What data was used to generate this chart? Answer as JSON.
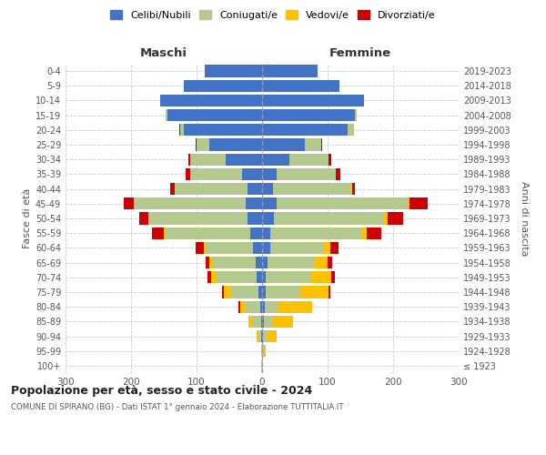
{
  "age_groups": [
    "100+",
    "95-99",
    "90-94",
    "85-89",
    "80-84",
    "75-79",
    "70-74",
    "65-69",
    "60-64",
    "55-59",
    "50-54",
    "45-49",
    "40-44",
    "35-39",
    "30-34",
    "25-29",
    "20-24",
    "15-19",
    "10-14",
    "5-9",
    "0-4"
  ],
  "birth_years": [
    "≤ 1923",
    "1924-1928",
    "1929-1933",
    "1934-1938",
    "1939-1943",
    "1944-1948",
    "1949-1953",
    "1954-1958",
    "1959-1963",
    "1964-1968",
    "1969-1973",
    "1974-1978",
    "1979-1983",
    "1984-1988",
    "1989-1993",
    "1994-1998",
    "1999-2003",
    "2004-2008",
    "2009-2013",
    "2014-2018",
    "2019-2023"
  ],
  "male_celibe": [
    0,
    0,
    1,
    2,
    3,
    5,
    8,
    10,
    14,
    18,
    22,
    25,
    22,
    30,
    55,
    80,
    120,
    145,
    155,
    120,
    88
  ],
  "male_coniugato": [
    1,
    2,
    5,
    13,
    23,
    42,
    62,
    65,
    72,
    130,
    150,
    170,
    112,
    80,
    55,
    20,
    5,
    2,
    1,
    0,
    0
  ],
  "male_vedovo": [
    0,
    0,
    3,
    6,
    8,
    12,
    8,
    5,
    3,
    2,
    1,
    1,
    0,
    0,
    0,
    0,
    0,
    0,
    0,
    0,
    0
  ],
  "male_divorziato": [
    0,
    0,
    0,
    0,
    2,
    2,
    6,
    6,
    12,
    18,
    14,
    15,
    6,
    6,
    3,
    2,
    1,
    0,
    0,
    0,
    0
  ],
  "female_nubile": [
    0,
    0,
    2,
    3,
    4,
    5,
    6,
    8,
    12,
    12,
    18,
    22,
    16,
    22,
    42,
    65,
    130,
    142,
    155,
    118,
    85
  ],
  "female_coniugata": [
    1,
    2,
    5,
    12,
    20,
    52,
    68,
    72,
    82,
    140,
    168,
    200,
    120,
    90,
    60,
    25,
    10,
    3,
    1,
    0,
    0
  ],
  "female_vedova": [
    1,
    3,
    15,
    32,
    52,
    45,
    32,
    20,
    10,
    8,
    5,
    3,
    1,
    0,
    0,
    0,
    0,
    0,
    0,
    0,
    0
  ],
  "female_divorziata": [
    0,
    0,
    0,
    0,
    1,
    2,
    5,
    7,
    12,
    22,
    24,
    28,
    5,
    8,
    3,
    2,
    0,
    0,
    0,
    0,
    0
  ],
  "colors": {
    "celibe": "#4472c4",
    "coniugato": "#b5c98e",
    "vedovo": "#ffc000",
    "divorziato": "#cc0000"
  },
  "title": "Popolazione per età, sesso e stato civile - 2024",
  "subtitle": "COMUNE DI SPIRANO (BG) - Dati ISTAT 1° gennaio 2024 - Elaborazione TUTTITALIA.IT",
  "ylabel_left": "Fasce di età",
  "ylabel_right": "Anni di nascita",
  "label_maschi": "Maschi",
  "label_femmine": "Femmine",
  "legend_labels": [
    "Celibi/Nubili",
    "Coniugati/e",
    "Vedovi/e",
    "Divorziati/e"
  ],
  "xlim": 300,
  "bg_color": "#ffffff",
  "grid_color": "#cccccc"
}
